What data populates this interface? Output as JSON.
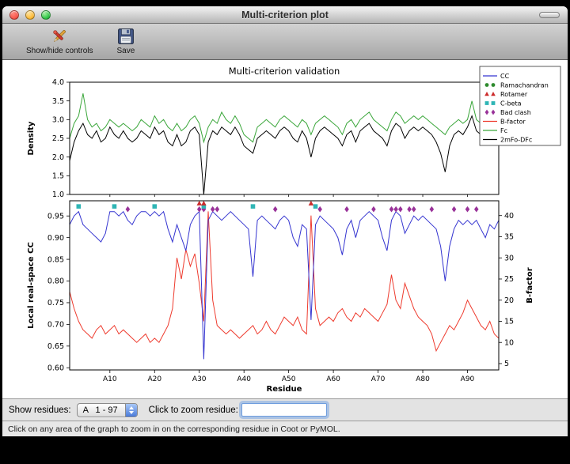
{
  "window": {
    "title": "Multi-criterion plot"
  },
  "toolbar": {
    "buttons": [
      {
        "label": "Show/hide controls",
        "icon": "tools-icon"
      },
      {
        "label": "Save",
        "icon": "save-icon"
      }
    ]
  },
  "controls": {
    "show_residues_label": "Show residues:",
    "residue_range_value": "A   1 - 97",
    "zoom_label": "Click to zoom residue:",
    "zoom_input_value": ""
  },
  "status_bar": {
    "text": "Click on any area of the graph to zoom in on the corresponding residue in Coot or PyMOL."
  },
  "legend": {
    "position": "upper right",
    "entries": [
      {
        "label": "CC",
        "type": "line",
        "color": "#3434d0"
      },
      {
        "label": "Ramachandran",
        "type": "circle",
        "color": "#2e8b2e"
      },
      {
        "label": "Rotamer",
        "type": "triangle",
        "color": "#cc2b2b"
      },
      {
        "label": "C-beta",
        "type": "square",
        "color": "#2fb5b5"
      },
      {
        "label": "Bad clash",
        "type": "diamond",
        "color": "#993299"
      },
      {
        "label": "B-factor",
        "type": "line",
        "color": "#ee3b2e"
      },
      {
        "label": "Fc",
        "type": "line",
        "color": "#3aa63a"
      },
      {
        "label": "2mFo-DFc",
        "type": "line",
        "color": "#000000"
      }
    ]
  },
  "chart_data": [
    {
      "type": "line",
      "title": "Multi-criterion validation",
      "ylabel": "Density",
      "ylim": [
        1.0,
        4.0
      ],
      "yticks": [
        1.0,
        1.5,
        2.0,
        2.5,
        3.0,
        3.5,
        4.0
      ],
      "ytick_labels": [
        "1.0",
        "1.5",
        "2.0",
        "2.5",
        "3.0",
        "3.5",
        "4.0"
      ],
      "x_range": [
        1,
        97
      ],
      "grid": false,
      "series": [
        {
          "name": "Fc",
          "color": "#3aa63a",
          "values": [
            2.5,
            2.9,
            3.1,
            3.7,
            3.0,
            2.8,
            2.9,
            2.7,
            2.8,
            3.0,
            2.9,
            2.8,
            2.9,
            2.8,
            2.7,
            2.8,
            3.0,
            2.9,
            2.8,
            3.1,
            2.9,
            3.0,
            2.8,
            2.7,
            2.9,
            2.7,
            2.8,
            3.0,
            3.1,
            2.9,
            2.4,
            2.8,
            3.0,
            2.9,
            3.2,
            3.0,
            2.9,
            3.1,
            2.9,
            2.6,
            2.5,
            2.4,
            2.8,
            2.9,
            3.0,
            2.9,
            2.8,
            3.0,
            3.1,
            3.0,
            2.9,
            2.8,
            3.0,
            2.9,
            2.6,
            2.9,
            3.0,
            3.1,
            3.0,
            2.9,
            2.8,
            2.6,
            2.9,
            3.0,
            2.8,
            3.0,
            3.1,
            3.2,
            3.0,
            2.9,
            2.8,
            2.7,
            3.0,
            3.2,
            3.1,
            2.9,
            3.0,
            3.1,
            3.0,
            3.1,
            3.0,
            2.9,
            2.8,
            2.7,
            2.6,
            2.8,
            2.9,
            3.0,
            2.9,
            3.0,
            3.5,
            3.0,
            2.9,
            2.8,
            3.4,
            3.2,
            3.3
          ]
        },
        {
          "name": "2mFo-DFc",
          "color": "#000000",
          "values": [
            1.9,
            2.4,
            2.7,
            2.9,
            2.6,
            2.5,
            2.7,
            2.4,
            2.5,
            2.8,
            2.6,
            2.5,
            2.7,
            2.5,
            2.4,
            2.5,
            2.7,
            2.6,
            2.5,
            2.8,
            2.6,
            2.7,
            2.4,
            2.3,
            2.6,
            2.3,
            2.4,
            2.7,
            2.8,
            2.6,
            1.0,
            2.4,
            2.7,
            2.6,
            2.8,
            2.7,
            2.6,
            2.8,
            2.6,
            2.3,
            2.2,
            2.1,
            2.5,
            2.6,
            2.7,
            2.6,
            2.5,
            2.7,
            2.8,
            2.7,
            2.5,
            2.4,
            2.7,
            2.5,
            2.0,
            2.5,
            2.7,
            2.8,
            2.7,
            2.6,
            2.5,
            2.3,
            2.6,
            2.7,
            2.4,
            2.7,
            2.8,
            2.9,
            2.7,
            2.6,
            2.5,
            2.3,
            2.7,
            2.9,
            2.8,
            2.5,
            2.7,
            2.8,
            2.7,
            2.8,
            2.7,
            2.6,
            2.4,
            2.1,
            1.6,
            2.3,
            2.6,
            2.7,
            2.6,
            2.8,
            3.1,
            2.7,
            2.6,
            2.5,
            3.0,
            2.8,
            3.0
          ]
        }
      ]
    },
    {
      "type": "line",
      "xlabel": "Residue",
      "ylabel_left": "Local real-space CC",
      "ylabel_right": "B-factor",
      "ylim_left": [
        0.595,
        0.985
      ],
      "yticks_left": [
        0.6,
        0.65,
        0.7,
        0.75,
        0.8,
        0.85,
        0.9,
        0.95
      ],
      "ytick_labels_left": [
        "0.60",
        "0.65",
        "0.70",
        "0.75",
        "0.80",
        "0.85",
        "0.90",
        "0.95"
      ],
      "ylim_right": [
        3.5,
        43.5
      ],
      "yticks_right": [
        5,
        10,
        15,
        20,
        25,
        30,
        35,
        40
      ],
      "ytick_labels_right": [
        "5",
        "10",
        "15",
        "20",
        "25",
        "30",
        "35",
        "40"
      ],
      "x_range": [
        1,
        97
      ],
      "xticks": [
        10,
        20,
        30,
        40,
        50,
        60,
        70,
        80,
        90
      ],
      "xtick_labels": [
        "A10",
        "A20",
        "A30",
        "A40",
        "A50",
        "A60",
        "A70",
        "A80",
        "A90"
      ],
      "grid": false,
      "series": [
        {
          "name": "B-factor",
          "axis": "right",
          "color": "#ee3b2e",
          "values": [
            22,
            18,
            15,
            13,
            12,
            11,
            13,
            14,
            12,
            13,
            14,
            12,
            13,
            12,
            11,
            10,
            11,
            12,
            10,
            11,
            10,
            12,
            14,
            18,
            30,
            25,
            32,
            28,
            31,
            24,
            15,
            41,
            20,
            14,
            13,
            12,
            13,
            12,
            11,
            12,
            13,
            14,
            12,
            13,
            15,
            13,
            12,
            14,
            16,
            15,
            14,
            16,
            13,
            12,
            40,
            18,
            14,
            15,
            16,
            15,
            17,
            18,
            16,
            15,
            17,
            16,
            18,
            17,
            16,
            15,
            17,
            19,
            26,
            20,
            18,
            24,
            21,
            18,
            16,
            15,
            14,
            12,
            8,
            10,
            12,
            14,
            13,
            15,
            17,
            20,
            18,
            16,
            14,
            13,
            15,
            12,
            11
          ]
        },
        {
          "name": "CC",
          "axis": "left",
          "color": "#3434d0",
          "values": [
            0.93,
            0.95,
            0.96,
            0.93,
            0.92,
            0.91,
            0.9,
            0.89,
            0.91,
            0.96,
            0.96,
            0.95,
            0.96,
            0.94,
            0.93,
            0.95,
            0.96,
            0.96,
            0.95,
            0.96,
            0.95,
            0.96,
            0.92,
            0.89,
            0.93,
            0.9,
            0.87,
            0.93,
            0.95,
            0.96,
            0.62,
            0.94,
            0.96,
            0.95,
            0.94,
            0.95,
            0.96,
            0.95,
            0.94,
            0.93,
            0.92,
            0.81,
            0.94,
            0.95,
            0.94,
            0.93,
            0.92,
            0.94,
            0.95,
            0.94,
            0.9,
            0.88,
            0.93,
            0.92,
            0.71,
            0.93,
            0.95,
            0.94,
            0.93,
            0.92,
            0.9,
            0.86,
            0.92,
            0.94,
            0.9,
            0.94,
            0.95,
            0.96,
            0.95,
            0.94,
            0.9,
            0.87,
            0.94,
            0.96,
            0.95,
            0.91,
            0.93,
            0.95,
            0.94,
            0.95,
            0.94,
            0.93,
            0.92,
            0.88,
            0.8,
            0.88,
            0.92,
            0.94,
            0.93,
            0.94,
            0.93,
            0.94,
            0.92,
            0.9,
            0.93,
            0.92,
            0.94
          ]
        }
      ],
      "markers": [
        {
          "name": "Bad clash",
          "shape": "diamond",
          "color": "#993299",
          "y": 0.9655,
          "residues": [
            14,
            30,
            31,
            33,
            34,
            47,
            57,
            63,
            69,
            73,
            74,
            75,
            77,
            78,
            82,
            87,
            90,
            92
          ]
        },
        {
          "name": "C-beta",
          "shape": "square",
          "color": "#2fb5b5",
          "y": 0.972,
          "residues": [
            3,
            11,
            20,
            31,
            42,
            56
          ]
        },
        {
          "name": "Rotamer",
          "shape": "triangle",
          "color": "#cc2b2b",
          "y": 0.979,
          "residues": [
            30,
            31,
            55
          ]
        },
        {
          "name": "Ramachandran",
          "shape": "circle",
          "color": "#2e8b2e",
          "y": 0.972,
          "residues": []
        }
      ]
    }
  ]
}
